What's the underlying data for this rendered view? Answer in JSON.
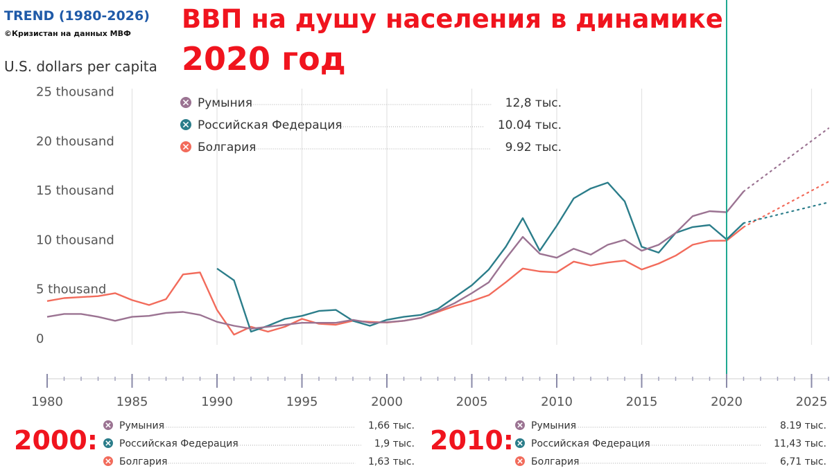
{
  "header": {
    "trend": "TREND (1980-2026)",
    "credit": "©Кризистан на данных МВФ",
    "unit": "U.S. dollars per capita",
    "headline": "ВВП на душу населения в динамике",
    "headline_year": "2020 год"
  },
  "colors": {
    "romania": "#9b7392",
    "russia": "#2b7d8a",
    "bulgaria": "#f26b5b",
    "marker": "#1fa891"
  },
  "legend_2020": {
    "title": "",
    "rows": [
      {
        "name": "Румыния",
        "value": "12,8 тыс.",
        "color_key": "romania"
      },
      {
        "name": "Российская Федерация",
        "value": "10.04 тыс.",
        "color_key": "russia"
      },
      {
        "name": "Болгария",
        "value": "9.92 тыс.",
        "color_key": "bulgaria"
      }
    ]
  },
  "legend_2000": {
    "title": "2000:",
    "rows": [
      {
        "name": "Румыния",
        "value": "1,66 тыс.",
        "color_key": "romania"
      },
      {
        "name": "Российская Федерация",
        "value": "1,9 тыс.",
        "color_key": "russia"
      },
      {
        "name": "Болгария",
        "value": "1,63 тыс.",
        "color_key": "bulgaria"
      }
    ]
  },
  "legend_2010": {
    "title": "2010:",
    "rows": [
      {
        "name": "Румыния",
        "value": "8.19 тыс.",
        "color_key": "romania"
      },
      {
        "name": "Российская Федерация",
        "value": "11,43 тыс.",
        "color_key": "russia"
      },
      {
        "name": "Болгария",
        "value": "6,71 тыс.",
        "color_key": "bulgaria"
      }
    ]
  },
  "chart_data": {
    "type": "line",
    "title": "ВВП на душу населения в динамике",
    "ylabel": "U.S. dollars per capita",
    "xlim": [
      1980,
      2026
    ],
    "ylim": [
      0,
      25000
    ],
    "x_ticks": [
      1980,
      1985,
      1990,
      1995,
      2000,
      2005,
      2010,
      2015,
      2020,
      2025
    ],
    "y_ticks": [
      {
        "value": 0,
        "label": "0"
      },
      {
        "value": 5000,
        "label": "5 thousand"
      },
      {
        "value": 10000,
        "label": "10 thousand"
      },
      {
        "value": 15000,
        "label": "15 thousand"
      },
      {
        "value": 20000,
        "label": "20 thousand"
      },
      {
        "value": 25000,
        "label": "25 thousand"
      }
    ],
    "marker_year": 2020,
    "grid": true,
    "series": [
      {
        "name": "Румыния",
        "color_key": "romania",
        "x": [
          1980,
          1981,
          1982,
          1983,
          1984,
          1985,
          1986,
          1987,
          1988,
          1989,
          1990,
          1991,
          1992,
          1993,
          1994,
          1995,
          1996,
          1997,
          1998,
          1999,
          2000,
          2001,
          2002,
          2003,
          2004,
          2005,
          2006,
          2007,
          2008,
          2009,
          2010,
          2011,
          2012,
          2013,
          2014,
          2015,
          2016,
          2017,
          2018,
          2019,
          2020,
          2021
        ],
        "y": [
          2200,
          2500,
          2500,
          2200,
          1800,
          2200,
          2300,
          2600,
          2700,
          2400,
          1700,
          1300,
          1000,
          1200,
          1400,
          1600,
          1600,
          1600,
          1900,
          1600,
          1660,
          1800,
          2100,
          2800,
          3600,
          4600,
          5700,
          8100,
          10300,
          8600,
          8190,
          9100,
          8500,
          9500,
          10000,
          8900,
          9500,
          10700,
          12400,
          12900,
          12800,
          14900
        ],
        "projection": {
          "x": [
            2021,
            2026
          ],
          "y": [
            14900,
            21300
          ]
        }
      },
      {
        "name": "Российская Федерация",
        "color_key": "russia",
        "x": [
          1990,
          1991,
          1992,
          1993,
          1994,
          1995,
          1996,
          1997,
          1998,
          1999,
          2000,
          2001,
          2002,
          2003,
          2004,
          2005,
          2006,
          2007,
          2008,
          2009,
          2010,
          2011,
          2012,
          2013,
          2014,
          2015,
          2016,
          2017,
          2018,
          2019,
          2020,
          2021
        ],
        "y": [
          7100,
          5900,
          700,
          1300,
          2000,
          2300,
          2800,
          2900,
          1800,
          1300,
          1900,
          2200,
          2400,
          3000,
          4200,
          5400,
          7000,
          9300,
          12200,
          8900,
          11430,
          14200,
          15200,
          15800,
          13900,
          9300,
          8700,
          10700,
          11300,
          11500,
          10040,
          11700
        ],
        "projection": {
          "x": [
            2021,
            2026
          ],
          "y": [
            11700,
            13800
          ]
        }
      },
      {
        "name": "Болгария",
        "color_key": "bulgaria",
        "x": [
          1980,
          1981,
          1982,
          1983,
          1984,
          1985,
          1986,
          1987,
          1988,
          1989,
          1990,
          1991,
          1992,
          1993,
          1994,
          1995,
          1996,
          1997,
          1998,
          1999,
          2000,
          2001,
          2002,
          2003,
          2004,
          2005,
          2006,
          2007,
          2008,
          2009,
          2010,
          2011,
          2012,
          2013,
          2014,
          2015,
          2016,
          2017,
          2018,
          2019,
          2020,
          2021
        ],
        "y": [
          3800,
          4100,
          4200,
          4300,
          4600,
          3900,
          3400,
          4000,
          6500,
          6700,
          2900,
          400,
          1200,
          700,
          1200,
          2000,
          1500,
          1400,
          1800,
          1700,
          1630,
          1800,
          2100,
          2700,
          3300,
          3800,
          4400,
          5700,
          7100,
          6800,
          6710,
          7800,
          7400,
          7700,
          7900,
          7000,
          7600,
          8400,
          9500,
          9900,
          9920,
          11300
        ],
        "projection": {
          "x": [
            2021,
            2026
          ],
          "y": [
            11300,
            15900
          ]
        }
      }
    ]
  }
}
